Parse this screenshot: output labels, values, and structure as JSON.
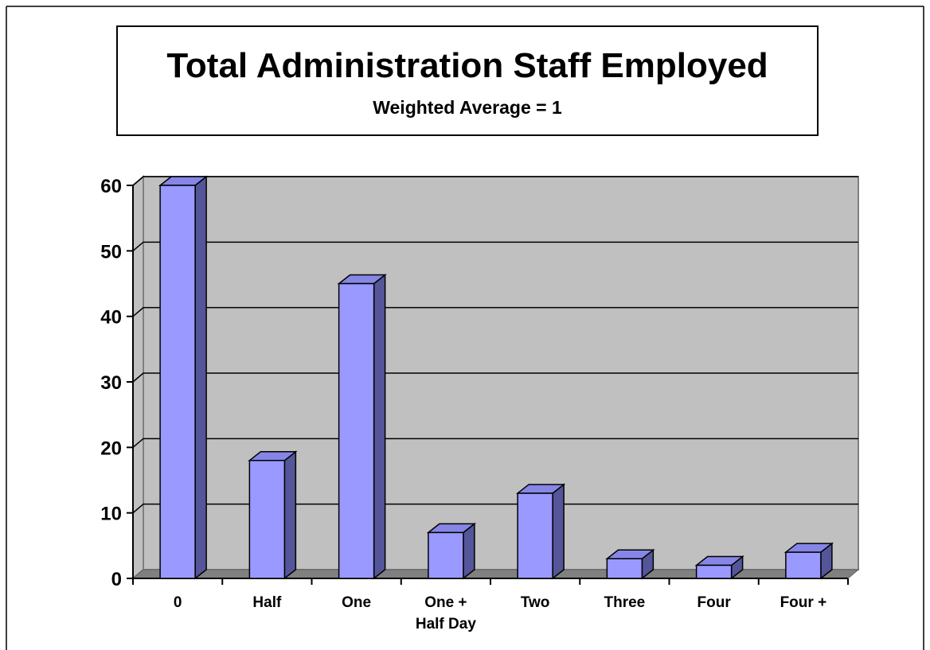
{
  "chart_data": {
    "type": "bar3d",
    "title": "Total Administration Staff Employed",
    "subtitle": "Weighted Average = 1",
    "categories": [
      "0",
      "Half",
      "One",
      "One +\nHalf Day",
      "Two",
      "Three",
      "Four",
      "Four +"
    ],
    "values": [
      60,
      18,
      45,
      7,
      13,
      3,
      2,
      4
    ],
    "color": "#9999ff",
    "ylim": [
      0,
      60
    ],
    "yticks": [
      0,
      10,
      20,
      30,
      40,
      50,
      60
    ],
    "grid": true
  }
}
